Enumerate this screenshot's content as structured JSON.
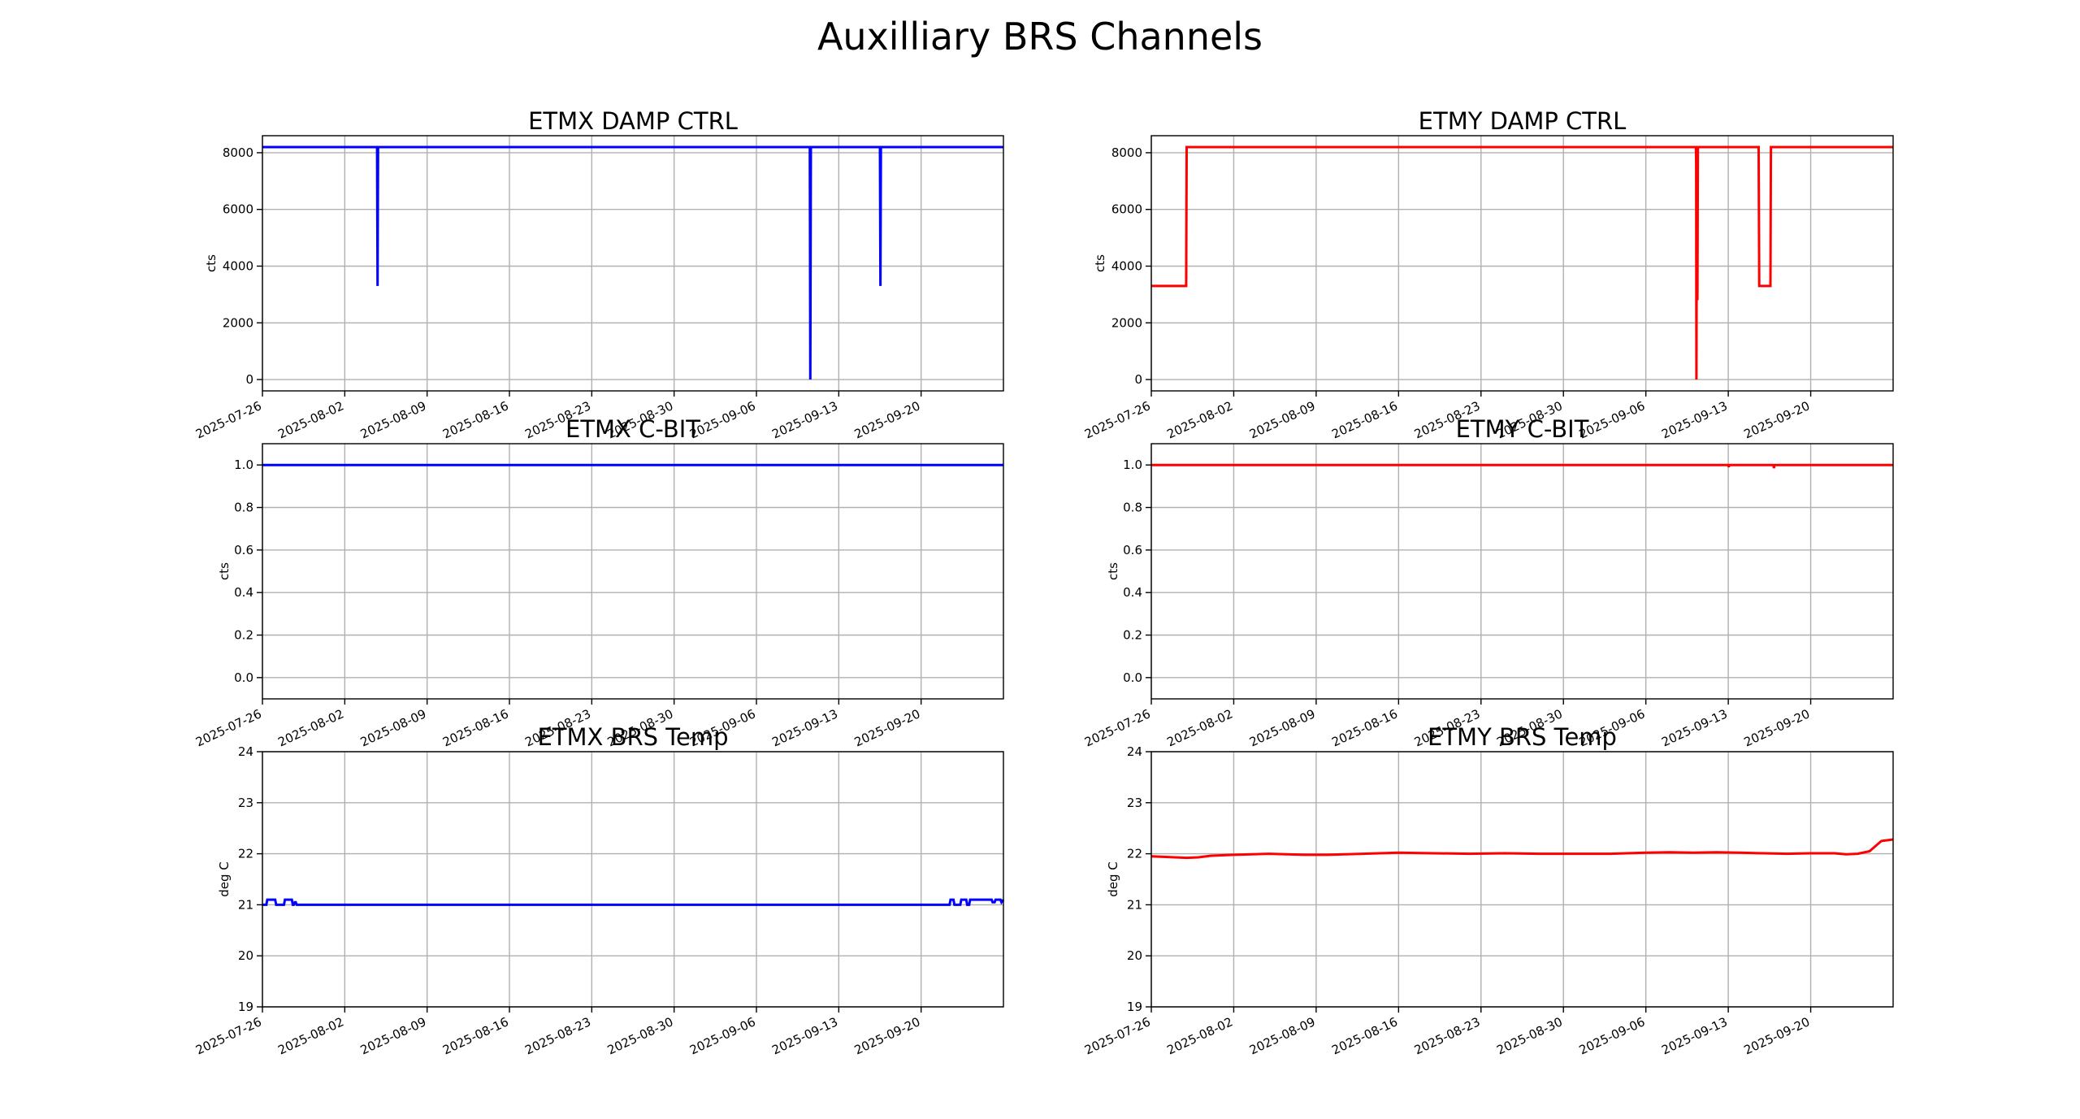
{
  "figure": {
    "title": "Auxilliary BRS Channels"
  },
  "chart_data": [
    {
      "id": "etmx-damp-ctrl",
      "type": "line",
      "title": "ETMX DAMP CTRL",
      "xlabel": "",
      "ylabel": "cts",
      "xlim": [
        "2025-07-26",
        "2025-09-27"
      ],
      "ylim": [
        -400,
        8600
      ],
      "yticks": [
        0,
        2000,
        4000,
        6000,
        8000
      ],
      "ytick_labels": [
        "0",
        "2000",
        "4000",
        "6000",
        "8000"
      ],
      "xticks": [
        "2025-07-26",
        "2025-08-02",
        "2025-08-09",
        "2025-08-16",
        "2025-08-23",
        "2025-08-30",
        "2025-09-06",
        "2025-09-13",
        "2025-09-20"
      ],
      "grid": true,
      "color": "#0000ff",
      "series": [
        {
          "x": [
            "2025-07-26T00:00",
            "2025-08-04T18:00",
            "2025-08-04T19:00",
            "2025-08-04T20:00",
            "2025-09-10T13:00",
            "2025-09-10T14:00",
            "2025-09-10T15:00",
            "2025-09-16T12:00",
            "2025-09-16T13:00",
            "2025-09-16T14:00",
            "2025-09-27T00:00"
          ],
          "y": [
            8200,
            8200,
            3300,
            8200,
            8200,
            0,
            8200,
            8200,
            3300,
            8200,
            8200
          ]
        }
      ]
    },
    {
      "id": "etmy-damp-ctrl",
      "type": "line",
      "title": "ETMY DAMP CTRL",
      "xlabel": "",
      "ylabel": "cts",
      "xlim": [
        "2025-07-26",
        "2025-09-27"
      ],
      "ylim": [
        -400,
        8600
      ],
      "yticks": [
        0,
        2000,
        4000,
        6000,
        8000
      ],
      "ytick_labels": [
        "0",
        "2000",
        "4000",
        "6000",
        "8000"
      ],
      "xticks": [
        "2025-07-26",
        "2025-08-02",
        "2025-08-09",
        "2025-08-16",
        "2025-08-23",
        "2025-08-30",
        "2025-09-06",
        "2025-09-13",
        "2025-09-20"
      ],
      "grid": true,
      "color": "#ff0000",
      "series": [
        {
          "x": [
            "2025-07-26T00:00",
            "2025-07-28T23:00",
            "2025-07-29T00:00",
            "2025-09-10T06:00",
            "2025-09-10T06:30",
            "2025-09-10T07:00",
            "2025-09-10T08:00",
            "2025-09-10T09:00",
            "2025-09-10T10:00",
            "2025-09-15T14:00",
            "2025-09-15T15:00",
            "2025-09-16T14:00",
            "2025-09-16T15:00",
            "2025-09-27T00:00"
          ],
          "y": [
            3300,
            3300,
            8200,
            8200,
            7600,
            0,
            8200,
            2800,
            8200,
            8200,
            3300,
            3300,
            8200,
            8200
          ]
        }
      ]
    },
    {
      "id": "etmx-c-bit",
      "type": "line",
      "title": "ETMX C-BIT",
      "xlabel": "",
      "ylabel": "cts",
      "xlim": [
        "2025-07-26",
        "2025-09-27"
      ],
      "ylim": [
        -0.1,
        1.1
      ],
      "yticks": [
        0.0,
        0.2,
        0.4,
        0.6,
        0.8,
        1.0
      ],
      "ytick_labels": [
        "0.0",
        "0.2",
        "0.4",
        "0.6",
        "0.8",
        "1.0"
      ],
      "xticks": [
        "2025-07-26",
        "2025-08-02",
        "2025-08-09",
        "2025-08-16",
        "2025-08-23",
        "2025-08-30",
        "2025-09-06",
        "2025-09-13",
        "2025-09-20"
      ],
      "grid": true,
      "color": "#0000ff",
      "series": [
        {
          "x": [
            "2025-07-26T00:00",
            "2025-09-27T00:00"
          ],
          "y": [
            1.0,
            1.0
          ]
        }
      ]
    },
    {
      "id": "etmy-c-bit",
      "type": "line",
      "title": "ETMY C-BIT",
      "xlabel": "",
      "ylabel": "cts",
      "xlim": [
        "2025-07-26",
        "2025-09-27"
      ],
      "ylim": [
        -0.1,
        1.1
      ],
      "yticks": [
        0.0,
        0.2,
        0.4,
        0.6,
        0.8,
        1.0
      ],
      "ytick_labels": [
        "0.0",
        "0.2",
        "0.4",
        "0.6",
        "0.8",
        "1.0"
      ],
      "xticks": [
        "2025-07-26",
        "2025-08-02",
        "2025-08-09",
        "2025-08-16",
        "2025-08-23",
        "2025-08-30",
        "2025-09-06",
        "2025-09-13",
        "2025-09-20"
      ],
      "grid": true,
      "color": "#ff0000",
      "series": [
        {
          "x": [
            "2025-07-26T00:00",
            "2025-09-13T00:00",
            "2025-09-13T01:00",
            "2025-09-13T02:00",
            "2025-09-16T20:00",
            "2025-09-16T21:00",
            "2025-09-16T22:00",
            "2025-09-27T00:00"
          ],
          "y": [
            1.0,
            1.0,
            0.99,
            1.0,
            1.0,
            0.985,
            1.0,
            1.0
          ]
        }
      ]
    },
    {
      "id": "etmx-brs-temp",
      "type": "line",
      "title": "ETMX BRS Temp",
      "xlabel": "",
      "ylabel": "deg C",
      "xlim": [
        "2025-07-26",
        "2025-09-27"
      ],
      "ylim": [
        19,
        24
      ],
      "yticks": [
        19,
        20,
        21,
        22,
        23,
        24
      ],
      "ytick_labels": [
        "19",
        "20",
        "21",
        "22",
        "23",
        "24"
      ],
      "xticks": [
        "2025-07-26",
        "2025-08-02",
        "2025-08-09",
        "2025-08-16",
        "2025-08-23",
        "2025-08-30",
        "2025-09-06",
        "2025-09-13",
        "2025-09-20"
      ],
      "grid": true,
      "color": "#0000ff",
      "series": [
        {
          "x": [
            "2025-07-26T00:00",
            "2025-07-26T08:00",
            "2025-07-26T10:00",
            "2025-07-27T02:00",
            "2025-07-27T04:00",
            "2025-07-27T20:00",
            "2025-07-27T22:00",
            "2025-07-28T12:00",
            "2025-07-28T14:00",
            "2025-07-28T16:00",
            "2025-07-28T18:00",
            "2025-07-28T20:00",
            "2025-07-28T22:00",
            "2025-09-22T10:00",
            "2025-09-22T12:00",
            "2025-09-22T18:00",
            "2025-09-22T20:00",
            "2025-09-23T08:00",
            "2025-09-23T10:00",
            "2025-09-23T20:00",
            "2025-09-23T22:00",
            "2025-09-24T02:00",
            "2025-09-24T04:00",
            "2025-09-26T00:00",
            "2025-09-26T02:00",
            "2025-09-26T06:00",
            "2025-09-26T08:00",
            "2025-09-26T18:00",
            "2025-09-26T20:00",
            "2025-09-27T00:00"
          ],
          "y": [
            21.0,
            21.0,
            21.1,
            21.1,
            21.0,
            21.0,
            21.1,
            21.1,
            21.0,
            21.0,
            21.05,
            21.05,
            21.0,
            21.0,
            21.1,
            21.1,
            21.0,
            21.0,
            21.1,
            21.1,
            21.0,
            21.0,
            21.1,
            21.1,
            21.05,
            21.05,
            21.1,
            21.1,
            21.05,
            21.1
          ]
        }
      ]
    },
    {
      "id": "etmy-brs-temp",
      "type": "line",
      "title": "ETMY BRS Temp",
      "xlabel": "",
      "ylabel": "deg C",
      "xlim": [
        "2025-07-26",
        "2025-09-27"
      ],
      "ylim": [
        19,
        24
      ],
      "yticks": [
        19,
        20,
        21,
        22,
        23,
        24
      ],
      "ytick_labels": [
        "19",
        "20",
        "21",
        "22",
        "23",
        "24"
      ],
      "xticks": [
        "2025-07-26",
        "2025-08-02",
        "2025-08-09",
        "2025-08-16",
        "2025-08-23",
        "2025-08-30",
        "2025-09-06",
        "2025-09-13",
        "2025-09-20"
      ],
      "grid": true,
      "color": "#ff0000",
      "series": [
        {
          "x": [
            "2025-07-26T00:00",
            "2025-07-27T00:00",
            "2025-07-28T00:00",
            "2025-07-29T00:00",
            "2025-07-30T00:00",
            "2025-07-31T00:00",
            "2025-08-02T00:00",
            "2025-08-05T00:00",
            "2025-08-08T00:00",
            "2025-08-10T00:00",
            "2025-08-13T00:00",
            "2025-08-16T00:00",
            "2025-08-19T00:00",
            "2025-08-22T00:00",
            "2025-08-25T00:00",
            "2025-08-28T00:00",
            "2025-08-31T00:00",
            "2025-09-03T00:00",
            "2025-09-06T00:00",
            "2025-09-08T00:00",
            "2025-09-10T00:00",
            "2025-09-12T00:00",
            "2025-09-14T00:00",
            "2025-09-16T00:00",
            "2025-09-18T00:00",
            "2025-09-20T00:00",
            "2025-09-22T00:00",
            "2025-09-23T00:00",
            "2025-09-24T00:00",
            "2025-09-25T00:00",
            "2025-09-26T00:00",
            "2025-09-27T00:00"
          ],
          "y": [
            21.95,
            21.94,
            21.93,
            21.92,
            21.93,
            21.96,
            21.98,
            22.0,
            21.98,
            21.98,
            22.0,
            22.02,
            22.01,
            22.0,
            22.01,
            22.0,
            22.0,
            22.0,
            22.02,
            22.03,
            22.02,
            22.03,
            22.02,
            22.01,
            22.0,
            22.01,
            22.01,
            21.99,
            22.0,
            22.05,
            22.25,
            22.28
          ]
        }
      ]
    }
  ]
}
